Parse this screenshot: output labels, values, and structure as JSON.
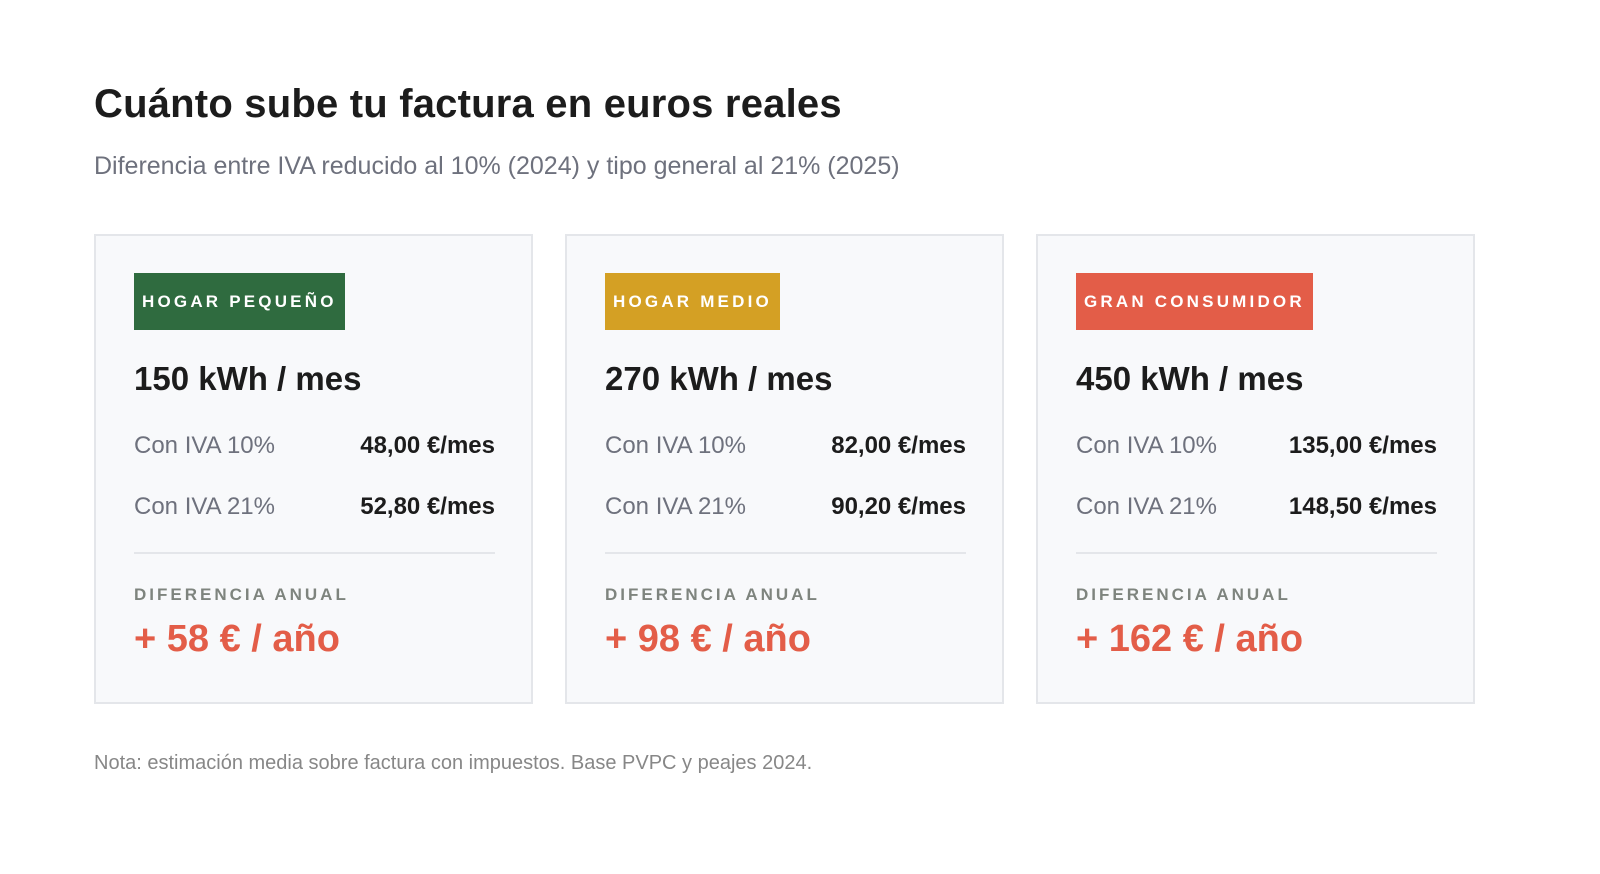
{
  "header": {
    "title": "Cuánto sube tu factura en euros reales",
    "subtitle": "Diferencia entre IVA reducido al 10% (2024) y tipo general al 21% (2025)"
  },
  "cards": [
    {
      "badge": "HOGAR PEQUEÑO",
      "badge_color": "#2f6b3f",
      "consumption": "150 kWh / mes",
      "rows": [
        {
          "label": "Con IVA 10%",
          "value": "48,00 €/mes"
        },
        {
          "label": "Con IVA 21%",
          "value": "52,80 €/mes"
        }
      ],
      "diff_label": "DIFERENCIA ANUAL",
      "diff_value": "+ 58 € / año"
    },
    {
      "badge": "HOGAR MEDIO",
      "badge_color": "#d4a024",
      "consumption": "270 kWh / mes",
      "rows": [
        {
          "label": "Con IVA 10%",
          "value": "82,00 €/mes"
        },
        {
          "label": "Con IVA 21%",
          "value": "90,20 €/mes"
        }
      ],
      "diff_label": "DIFERENCIA ANUAL",
      "diff_value": "+ 98 € / año"
    },
    {
      "badge": "GRAN CONSUMIDOR",
      "badge_color": "#e35d48",
      "consumption": "450 kWh / mes",
      "rows": [
        {
          "label": "Con IVA 10%",
          "value": "135,00 €/mes"
        },
        {
          "label": "Con IVA 21%",
          "value": "148,50 €/mes"
        }
      ],
      "diff_label": "DIFERENCIA ANUAL",
      "diff_value": "+ 162 € / año"
    }
  ],
  "colors": {
    "accent_red": "#e35d48",
    "card_bg": "#f8f9fb",
    "card_border": "#e4e6ea"
  },
  "footer": {
    "note": "Nota: estimación media sobre factura con impuestos. Base PVPC y peajes 2024."
  }
}
